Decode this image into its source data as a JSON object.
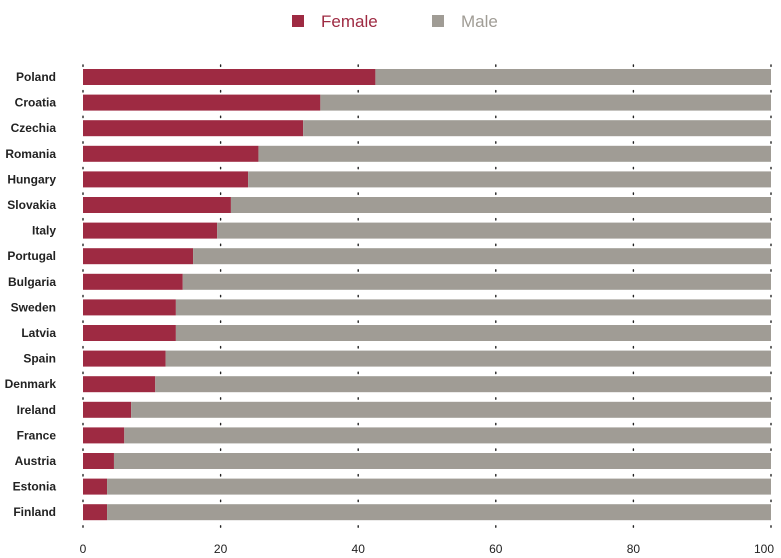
{
  "chart_data": {
    "type": "bar",
    "orientation": "horizontal",
    "stacked": true,
    "categories": [
      "Poland",
      "Croatia",
      "Czechia",
      "Romania",
      "Hungary",
      "Slovakia",
      "Italy",
      "Portugal",
      "Bulgaria",
      "Sweden",
      "Latvia",
      "Spain",
      "Denmark",
      "Ireland",
      "France",
      "Austria",
      "Estonia",
      "Finland"
    ],
    "series": [
      {
        "name": "Female",
        "color": "#9e2a42",
        "values": [
          42.5,
          34.5,
          32,
          25.5,
          24,
          21.5,
          19.5,
          16,
          14.5,
          13.5,
          13.5,
          12,
          10.5,
          7,
          6,
          4.5,
          3.5,
          3.5
        ]
      },
      {
        "name": "Male",
        "color": "#a09c95",
        "values": [
          57.5,
          65.5,
          68,
          74.5,
          76,
          78.5,
          80.5,
          84,
          85.5,
          86.5,
          86.5,
          88,
          89.5,
          93,
          94,
          95.5,
          96.5,
          96.5
        ]
      }
    ],
    "xlim": [
      0,
      100
    ],
    "xticks": [
      0,
      20,
      40,
      60,
      80,
      100
    ],
    "legend": "top-center",
    "grid": true
  }
}
